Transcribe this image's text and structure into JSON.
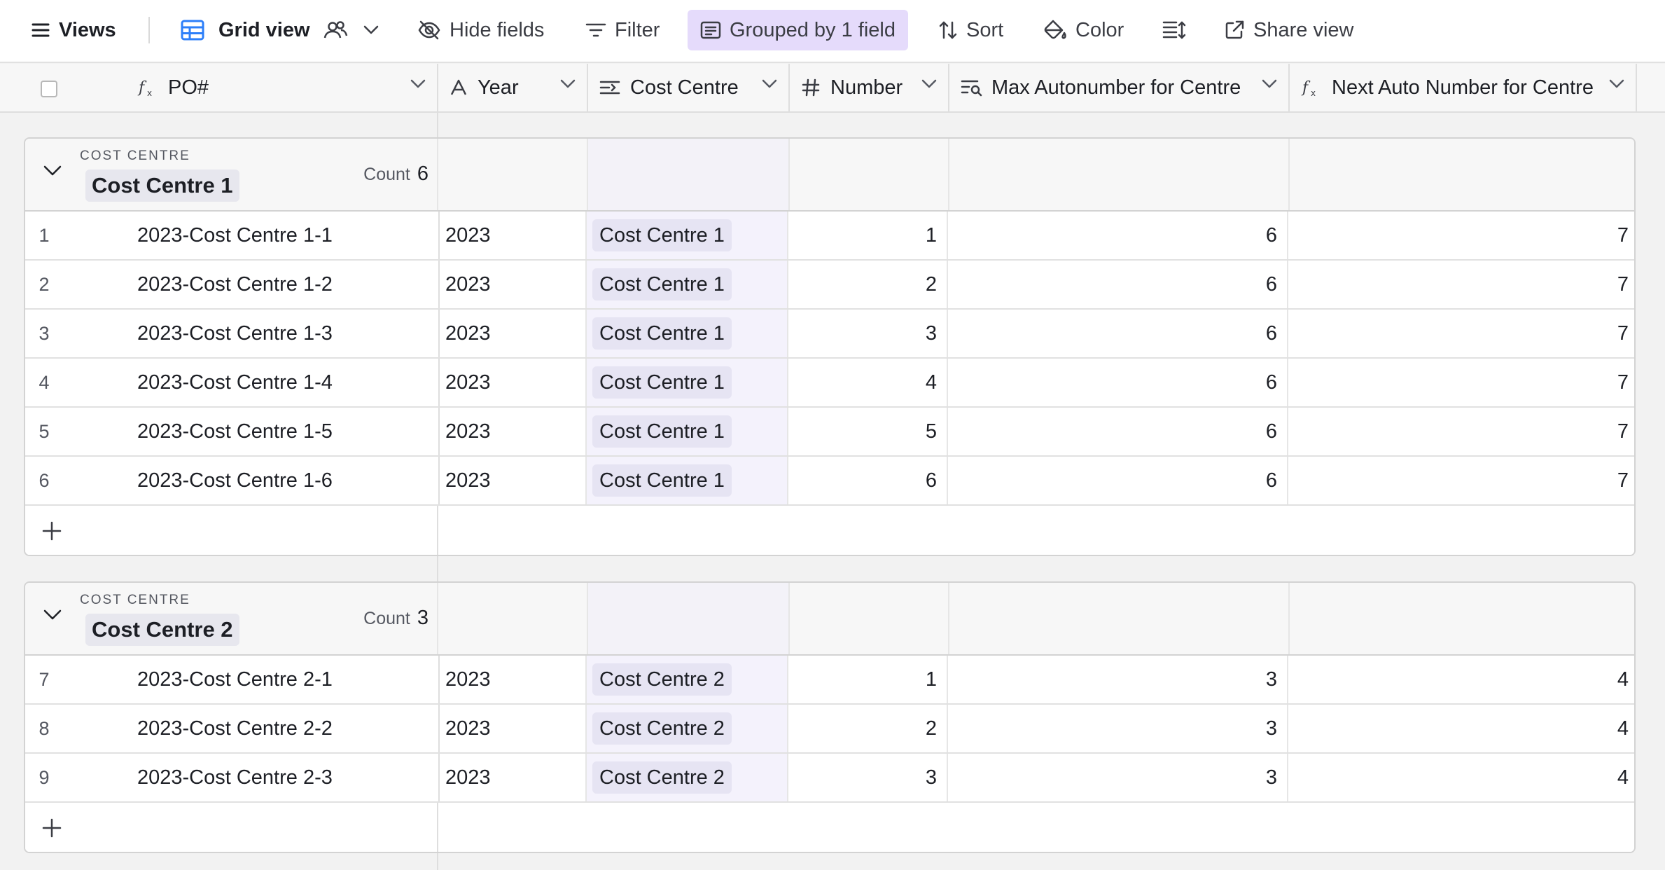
{
  "toolbar": {
    "views_label": "Views",
    "view_name": "Grid view",
    "hide_fields_label": "Hide fields",
    "filter_label": "Filter",
    "grouped_label": "Grouped by 1 field",
    "sort_label": "Sort",
    "color_label": "Color",
    "share_label": "Share view",
    "accent_grouped_bg": "#e5dbfb"
  },
  "columns": [
    {
      "label": "PO#",
      "icon": "formula-icon"
    },
    {
      "label": "Year",
      "icon": "text-icon"
    },
    {
      "label": "Cost Centre",
      "icon": "link-icon"
    },
    {
      "label": "Number",
      "icon": "number-icon"
    },
    {
      "label": "Max Autonumber for Centre",
      "icon": "rollup-icon"
    },
    {
      "label": "Next Auto Number for Centre",
      "icon": "formula-icon"
    }
  ],
  "groups": [
    {
      "field_label": "COST CENTRE",
      "value": "Cost Centre 1",
      "count_label": "Count",
      "count": "6",
      "rows": [
        {
          "num": "1",
          "po": "2023-Cost Centre 1-1",
          "year": "2023",
          "cc": "Cost Centre 1",
          "number": "1",
          "max": "6",
          "next": "7"
        },
        {
          "num": "2",
          "po": "2023-Cost Centre 1-2",
          "year": "2023",
          "cc": "Cost Centre 1",
          "number": "2",
          "max": "6",
          "next": "7"
        },
        {
          "num": "3",
          "po": "2023-Cost Centre 1-3",
          "year": "2023",
          "cc": "Cost Centre 1",
          "number": "3",
          "max": "6",
          "next": "7"
        },
        {
          "num": "4",
          "po": "2023-Cost Centre 1-4",
          "year": "2023",
          "cc": "Cost Centre 1",
          "number": "4",
          "max": "6",
          "next": "7"
        },
        {
          "num": "5",
          "po": "2023-Cost Centre 1-5",
          "year": "2023",
          "cc": "Cost Centre 1",
          "number": "5",
          "max": "6",
          "next": "7"
        },
        {
          "num": "6",
          "po": "2023-Cost Centre 1-6",
          "year": "2023",
          "cc": "Cost Centre 1",
          "number": "6",
          "max": "6",
          "next": "7"
        }
      ]
    },
    {
      "field_label": "COST CENTRE",
      "value": "Cost Centre 2",
      "count_label": "Count",
      "count": "3",
      "rows": [
        {
          "num": "7",
          "po": "2023-Cost Centre 2-1",
          "year": "2023",
          "cc": "Cost Centre 2",
          "number": "1",
          "max": "3",
          "next": "4"
        },
        {
          "num": "8",
          "po": "2023-Cost Centre 2-2",
          "year": "2023",
          "cc": "Cost Centre 2",
          "number": "2",
          "max": "3",
          "next": "4"
        },
        {
          "num": "9",
          "po": "2023-Cost Centre 2-3",
          "year": "2023",
          "cc": "Cost Centre 2",
          "number": "3",
          "max": "3",
          "next": "4"
        }
      ]
    }
  ]
}
